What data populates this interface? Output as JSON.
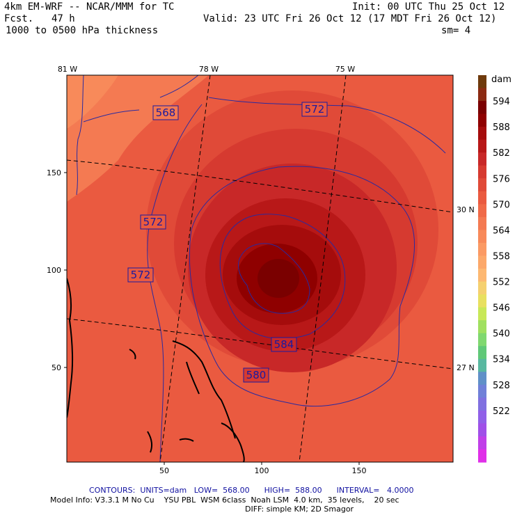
{
  "header": {
    "model": "4km EM-WRF -- NCAR/MMM for TC",
    "init": "Init: 00 UTC Thu 25 Oct 12",
    "fcst_label": "Fcst.",
    "fcst_hours": "47 h",
    "valid": "Valid: 23 UTC Fri 26 Oct 12 (17 MDT Fri 26 Oct 12)",
    "field": "1000 to 0500 hPa thickness",
    "smoothing": "sm= 4"
  },
  "map": {
    "lon_labels": [
      "81 W",
      "78 W",
      "75 W"
    ],
    "lat_labels": [
      "30 N",
      "27 N"
    ],
    "x_ticks": [
      50,
      100,
      150
    ],
    "y_ticks": [
      50,
      100,
      150
    ],
    "contour_labels": [
      "568",
      "572",
      "572",
      "572",
      "584",
      "580"
    ],
    "colors": {
      "coast": "#000000",
      "contour": "#2a2aa0",
      "gridline": "#000000"
    }
  },
  "colorbar": {
    "units": "dam",
    "labels": [
      "594",
      "588",
      "582",
      "576",
      "570",
      "564",
      "558",
      "552",
      "546",
      "540",
      "534",
      "528",
      "522"
    ],
    "colors": [
      "#6e3a0c",
      "#8b2a12",
      "#7a0000",
      "#8f0000",
      "#a50c0c",
      "#b81818",
      "#c82828",
      "#d63a30",
      "#e04a38",
      "#ea5a40",
      "#f06a48",
      "#f47a52",
      "#f88a5a",
      "#fb9a64",
      "#fca86a",
      "#fdb872",
      "#f5d070",
      "#e8e060",
      "#c8e858",
      "#a0e060",
      "#80d870",
      "#60c878",
      "#58b8a0",
      "#6090c8",
      "#7080d8",
      "#8070e0",
      "#9060e8",
      "#a050e8",
      "#c040e8",
      "#e030e8"
    ]
  },
  "footer": {
    "contours": "CONTOURS:  UNITS=dam   LOW=  568.00      HIGH=  588.00      INTERVAL=   4.0000",
    "model_info": "Model Info: V3.3.1 M No Cu    YSU PBL  WSM 6class  Noah LSM  4.0 km,  35 levels,    20 sec",
    "diff": "DIFF: simple KM; 2D Smagor"
  }
}
